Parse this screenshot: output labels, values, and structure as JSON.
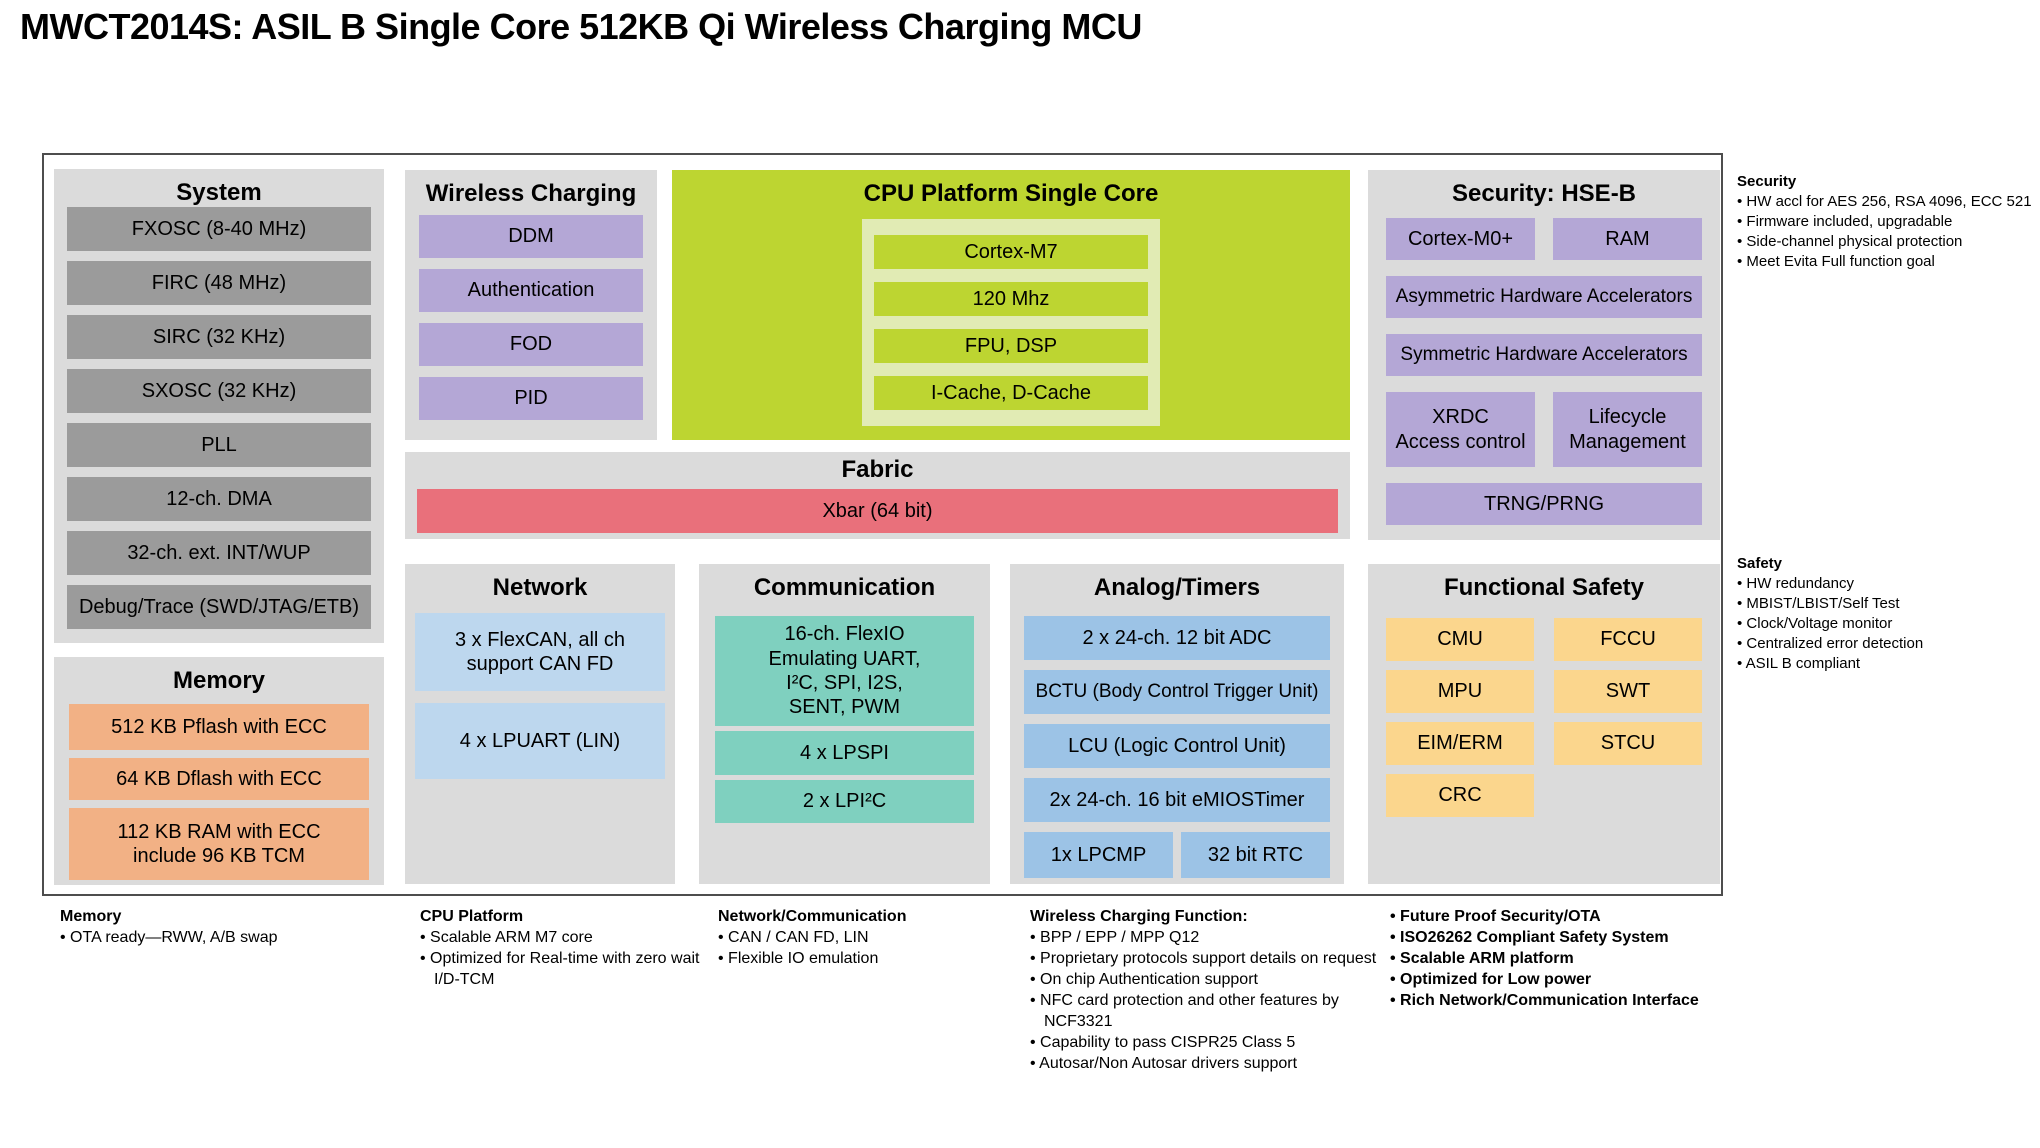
{
  "title": "MWCT2014S: ASIL B Single Core 512KB Qi Wireless Charging MCU",
  "colors": {
    "section_gray": "#dbdbdb",
    "system_gray": "#9b9b9b",
    "memory_orange": "#f2b185",
    "purple": "#b4a7d6",
    "lime_green": "#bdd531",
    "pale_green": "#e1ebb4",
    "fabric_red": "#e9707b",
    "network_blue": "#bdd7ee",
    "comm_teal": "#7fd0bf",
    "analog_blue": "#9cc3e6",
    "safety_tan": "#fbd68d"
  },
  "sections": {
    "system": {
      "title": "System",
      "items": [
        "FXOSC (8-40 MHz)",
        "FIRC (48 MHz)",
        "SIRC (32 KHz)",
        "SXOSC (32 KHz)",
        "PLL",
        "12-ch. DMA",
        "32-ch. ext. INT/WUP",
        "Debug/Trace (SWD/JTAG/ETB)"
      ]
    },
    "memory": {
      "title": "Memory",
      "items": [
        "512 KB Pflash with ECC",
        "64 KB Dflash with ECC",
        "112 KB RAM with ECC\ninclude 96 KB TCM"
      ]
    },
    "wireless": {
      "title": "Wireless Charging",
      "items": [
        "DDM",
        "Authentication",
        "FOD",
        "PID"
      ]
    },
    "cpu": {
      "title": "CPU Platform Single Core",
      "items": [
        "Cortex-M7",
        "120 Mhz",
        "FPU, DSP",
        "I-Cache, D-Cache"
      ]
    },
    "fabric": {
      "title": "Fabric",
      "xbar": "Xbar (64 bit)"
    },
    "security_hse": {
      "title": "Security: HSE-B",
      "items": [
        "Cortex-M0+",
        "RAM",
        "Asymmetric Hardware Accelerators",
        "Symmetric Hardware Accelerators",
        "XRDC\nAccess control",
        "Lifecycle\nManagement",
        "TRNG/PRNG"
      ]
    },
    "network": {
      "title": "Network",
      "items": [
        "3 x FlexCAN, all ch\nsupport CAN FD",
        "4 x LPUART (LIN)"
      ]
    },
    "communication": {
      "title": "Communication",
      "items": [
        "16-ch. FlexIO\nEmulating  UART,\nI²C, SPI, I2S,\nSENT, PWM",
        "4 x LPSPI",
        "2 x LPI²C"
      ]
    },
    "analog": {
      "title": "Analog/Timers",
      "items": [
        "2 x 24-ch. 12 bit ADC",
        "BCTU (Body Control Trigger Unit)",
        "LCU (Logic Control Unit)",
        "2x 24-ch. 16 bit eMIOSTimer",
        "1x LPCMP",
        "32 bit RTC"
      ]
    },
    "functional_safety": {
      "title": "Functional Safety",
      "items": [
        "CMU",
        "FCCU",
        "MPU",
        "SWT",
        "EIM/ERM",
        "STCU",
        "CRC"
      ]
    }
  },
  "side_notes": {
    "security": {
      "title": "Security",
      "items": [
        "• HW accl for AES 256, RSA 4096, ECC 521",
        "• Firmware included, upgradable",
        "• Side-channel physical protection",
        "• Meet Evita Full function goal"
      ]
    },
    "safety": {
      "title": "Safety",
      "items": [
        "• HW redundancy",
        "• MBIST/LBIST/Self Test",
        "• Clock/Voltage monitor",
        "• Centralized error detection",
        "• ASIL B compliant"
      ]
    }
  },
  "footnotes": [
    {
      "title": "Memory",
      "items": [
        "• OTA ready—RWW, A/B swap"
      ]
    },
    {
      "title": "CPU Platform",
      "items": [
        "• Scalable ARM M7 core",
        "• Optimized for Real-time with zero wait\nI/D-TCM"
      ]
    },
    {
      "title": "Network/Communication",
      "items": [
        "• CAN / CAN FD, LIN",
        "• Flexible IO emulation"
      ]
    },
    {
      "title": "Wireless Charging Function:",
      "items": [
        "• BPP / EPP / MPP Q12",
        "• Proprietary protocols support details on request",
        "• On chip Authentication support",
        "• NFC card protection and other features by NCF3321",
        "• Capability to pass CISPR25 Class 5",
        "• Autosar/Non Autosar drivers support"
      ]
    },
    {
      "title": "",
      "items": [
        "• Future Proof Security/OTA",
        "• ISO26262 Compliant Safety System",
        "• Scalable ARM platform",
        "• Optimized for Low power",
        "• Rich Network/Communication Interface"
      ]
    }
  ]
}
